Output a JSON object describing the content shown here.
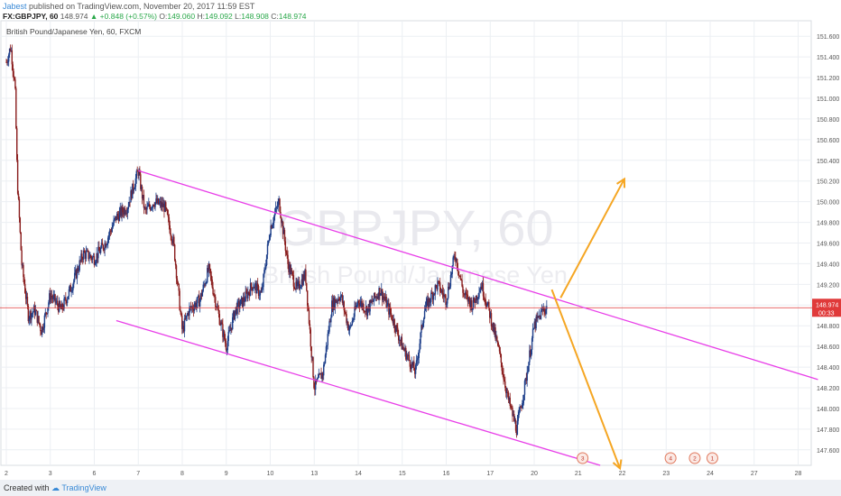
{
  "header": {
    "author": "Jabest",
    "published": "published on TradingView.com, November 20, 2017 11:59 EST",
    "symbol": "FX:GBPJPY, 60",
    "last": "148.974",
    "change": "▲ +0.848 (+0.57%)",
    "o_label": "O:",
    "o_val": "149.060",
    "h_label": "H:",
    "h_val": "149.092",
    "l_label": "L:",
    "l_val": "148.908",
    "c_label": "C:",
    "c_val": "148.974"
  },
  "footer": {
    "created_with": "Created with",
    "brand": "TradingView"
  },
  "chart_data": {
    "type": "candlestick",
    "title": "British Pound/Japanese Yen, 60, FXCM",
    "watermark_symbol": "GBPJPY, 60",
    "watermark_name": "British Pound/Japanese Yen",
    "y_ticks": [
      "147.600",
      "147.800",
      "148.000",
      "148.200",
      "148.400",
      "148.600",
      "148.800",
      "149.000",
      "149.200",
      "149.400",
      "149.600",
      "149.800",
      "150.000",
      "150.200",
      "150.400",
      "150.600",
      "150.800",
      "151.000",
      "151.200",
      "151.400",
      "151.600"
    ],
    "ylim": [
      147.45,
      151.75
    ],
    "x_ticks": [
      {
        "label": "2",
        "day": 2
      },
      {
        "label": "3",
        "day": 3
      },
      {
        "label": "6",
        "day": 4
      },
      {
        "label": "7",
        "day": 5
      },
      {
        "label": "8",
        "day": 6
      },
      {
        "label": "9",
        "day": 7
      },
      {
        "label": "10",
        "day": 8
      },
      {
        "label": "13",
        "day": 9
      },
      {
        "label": "14",
        "day": 10
      },
      {
        "label": "15",
        "day": 11
      },
      {
        "label": "16",
        "day": 12
      },
      {
        "label": "17",
        "day": 13
      },
      {
        "label": "20",
        "day": 14
      },
      {
        "label": "21",
        "day": 15
      },
      {
        "label": "22",
        "day": 16
      },
      {
        "label": "23",
        "day": 17
      },
      {
        "label": "24",
        "day": 18
      },
      {
        "label": "27",
        "day": 19
      },
      {
        "label": "28",
        "day": 20
      }
    ],
    "current_price": {
      "value": 148.974,
      "label": "148.974",
      "countdown": "00:33",
      "color": "#e03a3a"
    },
    "price_path": [
      [
        2.0,
        151.35
      ],
      [
        2.1,
        151.5
      ],
      [
        2.2,
        151.1
      ],
      [
        2.25,
        150.2
      ],
      [
        2.35,
        149.4
      ],
      [
        2.5,
        148.9
      ],
      [
        2.65,
        148.95
      ],
      [
        2.8,
        148.75
      ],
      [
        3.0,
        149.1
      ],
      [
        3.25,
        148.95
      ],
      [
        3.5,
        149.2
      ],
      [
        3.75,
        149.5
      ],
      [
        4.0,
        149.45
      ],
      [
        4.25,
        149.6
      ],
      [
        4.5,
        149.85
      ],
      [
        4.75,
        149.95
      ],
      [
        5.0,
        150.3
      ],
      [
        5.15,
        149.9
      ],
      [
        5.35,
        150.0
      ],
      [
        5.6,
        149.95
      ],
      [
        5.8,
        149.6
      ],
      [
        6.0,
        148.75
      ],
      [
        6.15,
        148.95
      ],
      [
        6.4,
        149.05
      ],
      [
        6.6,
        149.35
      ],
      [
        6.8,
        148.95
      ],
      [
        7.0,
        148.6
      ],
      [
        7.2,
        148.95
      ],
      [
        7.4,
        149.05
      ],
      [
        7.6,
        149.2
      ],
      [
        7.8,
        149.1
      ],
      [
        8.0,
        149.75
      ],
      [
        8.2,
        150.0
      ],
      [
        8.4,
        149.4
      ],
      [
        8.6,
        149.15
      ],
      [
        8.8,
        149.3
      ],
      [
        9.0,
        148.2
      ],
      [
        9.2,
        148.35
      ],
      [
        9.4,
        149.0
      ],
      [
        9.6,
        149.1
      ],
      [
        9.8,
        148.75
      ],
      [
        10.0,
        149.05
      ],
      [
        10.2,
        148.95
      ],
      [
        10.5,
        149.15
      ],
      [
        10.8,
        148.85
      ],
      [
        11.0,
        148.6
      ],
      [
        11.3,
        148.35
      ],
      [
        11.5,
        148.95
      ],
      [
        11.8,
        149.2
      ],
      [
        12.0,
        149.05
      ],
      [
        12.2,
        149.5
      ],
      [
        12.4,
        149.1
      ],
      [
        12.6,
        149.0
      ],
      [
        12.8,
        149.2
      ],
      [
        13.0,
        148.9
      ],
      [
        13.2,
        148.55
      ],
      [
        13.4,
        148.1
      ],
      [
        13.6,
        147.8
      ],
      [
        13.8,
        148.25
      ],
      [
        14.0,
        148.8
      ],
      [
        14.2,
        148.95
      ],
      [
        14.3,
        148.974
      ]
    ],
    "channel_lines": [
      {
        "name": "upper",
        "color": "#e83ee8",
        "from": [
          5.0,
          150.3
        ],
        "to": [
          20.45,
          148.28
        ]
      },
      {
        "name": "lower",
        "color": "#e83ee8",
        "from": [
          4.5,
          148.85
        ],
        "to": [
          15.5,
          147.45
        ]
      }
    ],
    "arrows": [
      {
        "name": "bullish",
        "color": "#f5a623",
        "from": [
          14.6,
          149.07
        ],
        "to": [
          16.05,
          150.22
        ]
      },
      {
        "name": "bearish",
        "color": "#f5a623",
        "from": [
          14.4,
          149.15
        ],
        "to": [
          15.95,
          147.42
        ]
      }
    ],
    "event_markers": [
      {
        "day": 15.1,
        "label": "3"
      },
      {
        "day": 17.1,
        "label": "4"
      },
      {
        "day": 17.65,
        "label": "2"
      },
      {
        "day": 18.05,
        "label": "1"
      }
    ],
    "colors": {
      "up": "#1e3f8a",
      "down": "#8a1e1e",
      "grid": "#eceff3",
      "price_line": "#e03a3a"
    }
  }
}
